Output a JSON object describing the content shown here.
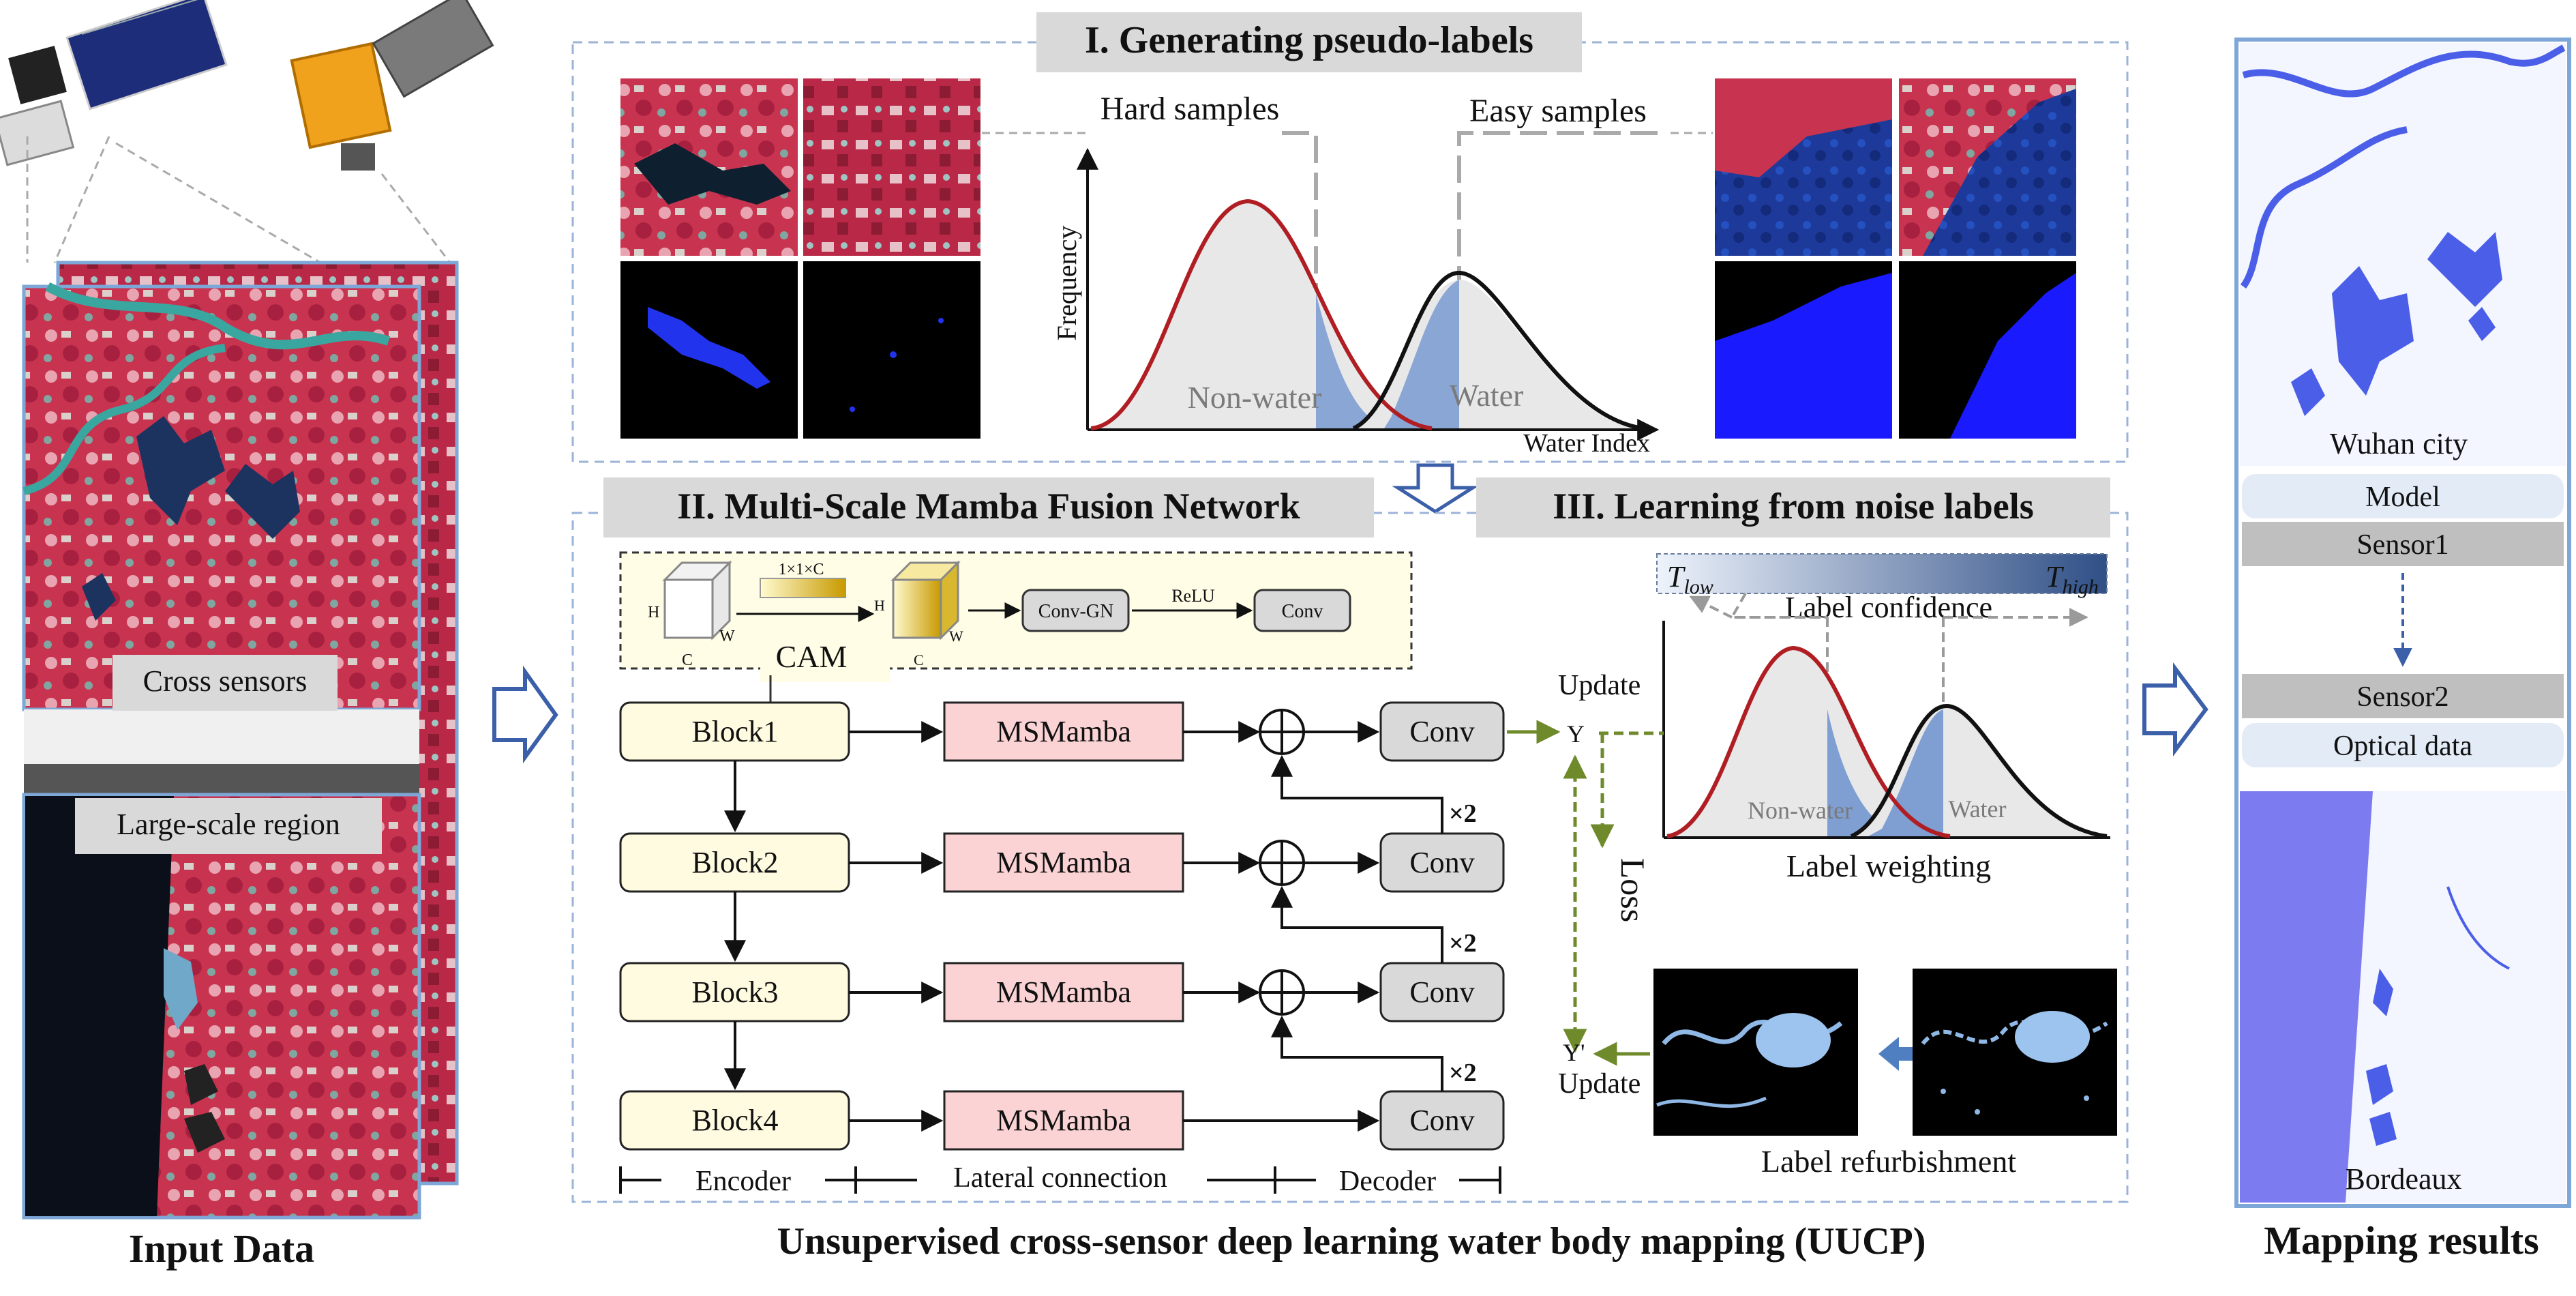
{
  "input_data": {
    "title": "Input Data",
    "cross_sensors_label": "Cross sensors",
    "large_scale_label": "Large-scale region"
  },
  "section1": {
    "title": "I. Generating pseudo-labels",
    "hard_samples": "Hard samples",
    "easy_samples": "Easy samples",
    "y_axis_label": "Frequency",
    "x_axis_label": "Water Index",
    "non_water_label": "Non-water",
    "water_label": "Water"
  },
  "section2": {
    "title": "II. Multi-Scale Mamba Fusion Network",
    "cam": {
      "label": "CAM",
      "vector_label": "1×1×C",
      "h": "H",
      "w": "W",
      "c": "C",
      "conv_gn": "Conv-GN",
      "relu": "ReLU",
      "conv": "Conv"
    },
    "blocks": [
      "Block1",
      "Block2",
      "Block3",
      "Block4"
    ],
    "msmamba": [
      "MSMamba",
      "MSMamba",
      "MSMamba",
      "MSMamba"
    ],
    "convs": [
      "Conv",
      "Conv",
      "Conv",
      "Conv"
    ],
    "upsample_labels": [
      "×2",
      "×2",
      "×2"
    ],
    "encoder_label": "Encoder",
    "lateral_label": "Lateral connection",
    "decoder_label": "Decoder"
  },
  "section3": {
    "title": "III. Learning from noise labels",
    "t_low": "T",
    "t_low_sub": "low",
    "t_high": "T",
    "t_high_sub": "high",
    "confidence_label": "Label confidence",
    "update_top": "Update",
    "y_label": "Y",
    "loss_label": "Loss",
    "y_prime_label": "Y'",
    "update_bottom": "Update",
    "non_water_label": "Non-water",
    "water_label": "Water",
    "weighting_label": "Label weighting",
    "refurbishment_label": "Label refurbishment"
  },
  "footer_title": "Unsupervised cross-sensor deep learning water body mapping (UUCP)",
  "results": {
    "title": "Mapping results",
    "wuhan_label": "Wuhan city",
    "model_label": "Model",
    "sensor1_label": "Sensor1",
    "sensor2_label": "Sensor2",
    "optical_label": "Optical data",
    "bordeaux_label": "Bordeaux"
  },
  "colors": {
    "accent_blue": "#3b5fa8",
    "dashed_border": "#9bb3d8",
    "title_bg": "#d9d9d9",
    "block_fill": "#fffbe0",
    "msmamba_fill": "#fbd3d5",
    "conv_fill": "#d9d9d9",
    "green_arrow": "#6e8a2b",
    "red_curve": "#b01e23",
    "water_blue": "#5b6be8",
    "false_color_red": "#c8344f"
  }
}
